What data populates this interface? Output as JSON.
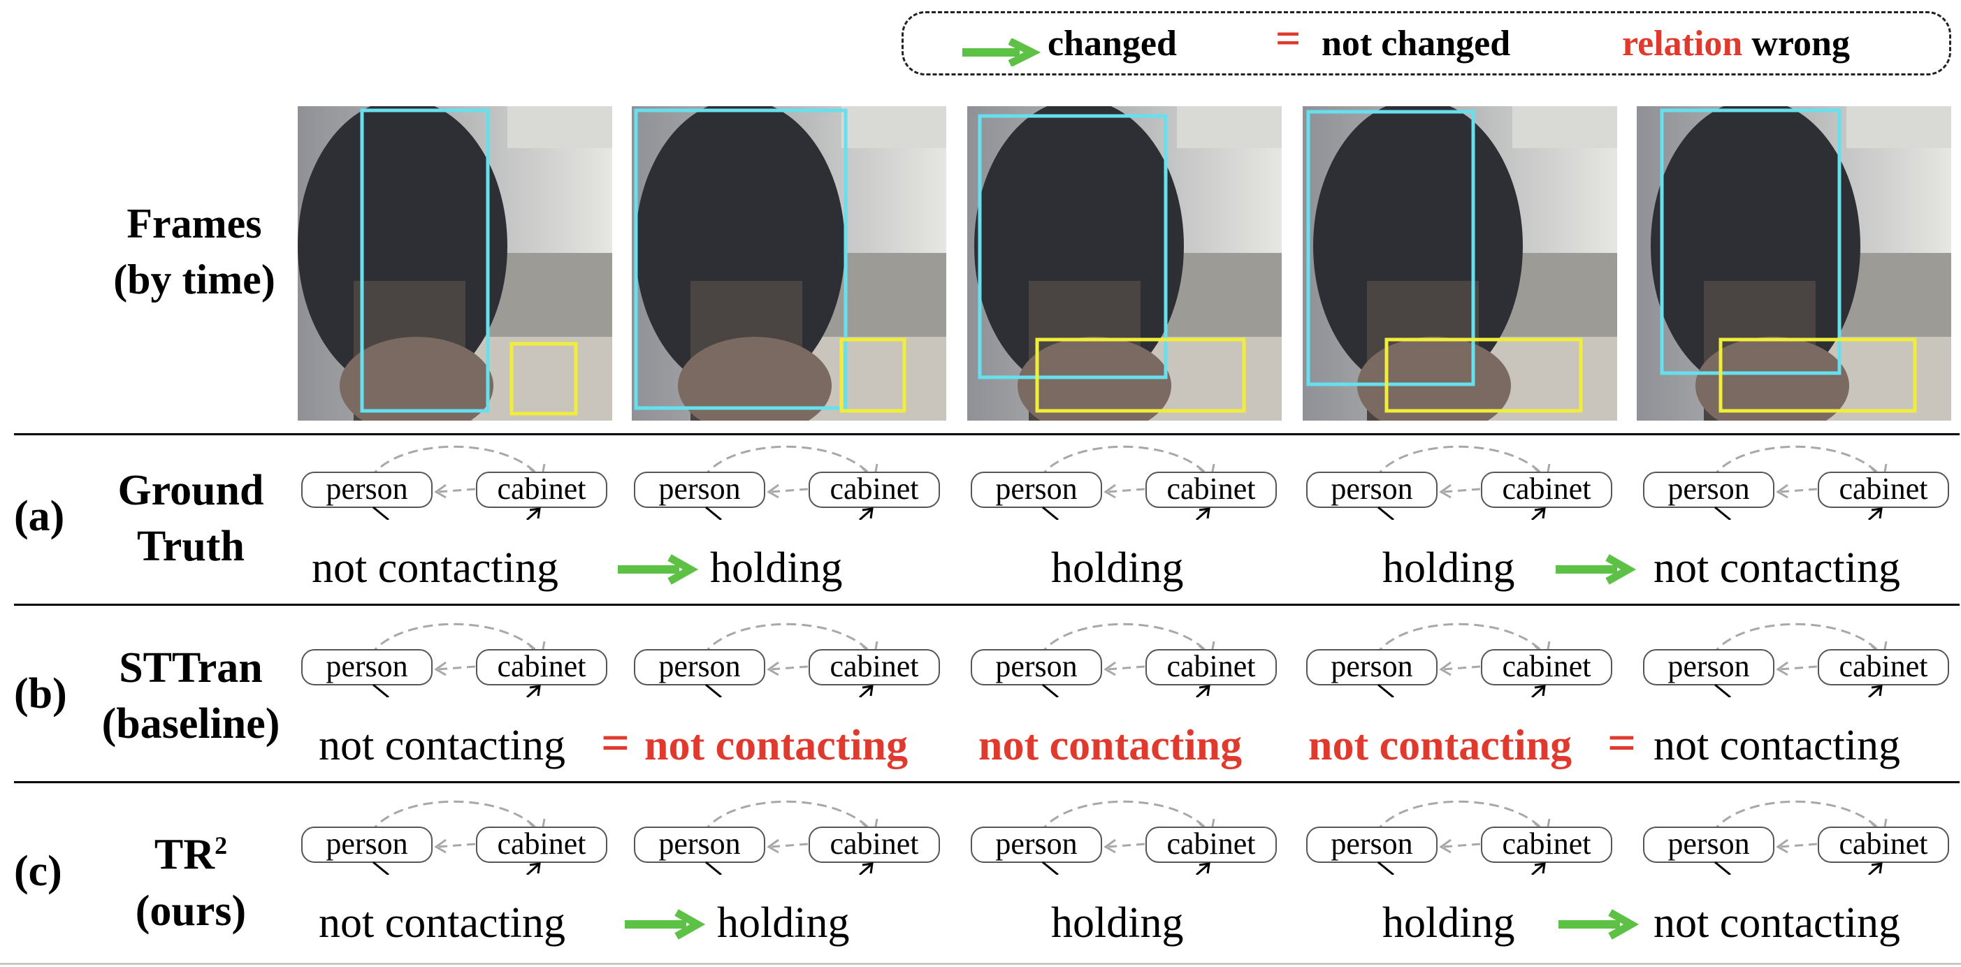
{
  "legend": {
    "changed": "changed",
    "not_changed": "not changed",
    "relation_word": "relation",
    "wrong_word": "wrong"
  },
  "frames_label_line1": "Frames",
  "frames_label_line2": "(by time)",
  "rows": [
    {
      "letter": "(a)",
      "label_line1": "Ground",
      "label_line2": "Truth",
      "relations": [
        "not contacting",
        "holding",
        "holding",
        "holding",
        "not contacting"
      ],
      "wrong": [
        false,
        false,
        false,
        false,
        false
      ],
      "connectors": [
        "changed",
        "none",
        "none",
        "changed"
      ]
    },
    {
      "letter": "(b)",
      "label_line1": "STTran",
      "label_line2": "(baseline)",
      "relations": [
        "not contacting",
        "not contacting",
        "not contacting",
        "not contacting",
        "not contacting"
      ],
      "wrong": [
        false,
        true,
        true,
        true,
        false
      ],
      "connectors": [
        "not_changed",
        "none",
        "none",
        "not_changed"
      ]
    },
    {
      "letter": "(c)",
      "label_line1": "TR",
      "label_sup": "2",
      "label_line2": "(ours)",
      "relations": [
        "not contacting",
        "holding",
        "holding",
        "holding",
        "not contacting"
      ],
      "wrong": [
        false,
        false,
        false,
        false,
        false
      ],
      "connectors": [
        "changed",
        "none",
        "none",
        "changed"
      ]
    }
  ],
  "graph": {
    "subject": "person",
    "object": "cabinet"
  },
  "colors": {
    "changed": "#5cc144",
    "wrong": "#e03a2e",
    "person_box": "#66e0ee",
    "object_box": "#f0ee3a"
  }
}
